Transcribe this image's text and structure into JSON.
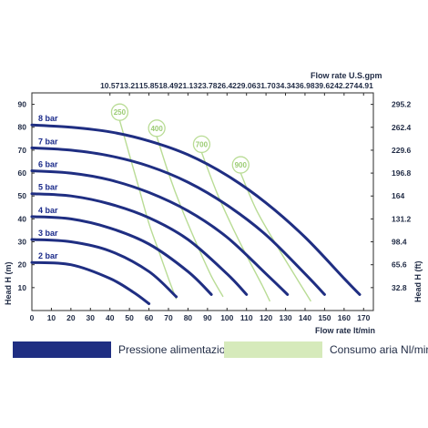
{
  "chart_data": {
    "type": "line",
    "title": "",
    "xlabel": "Flow rate  lt/min",
    "ylabel": "Head H (m)",
    "ylabel_right": "Head H (ft)",
    "xlabel_top": "Flow rate U.S.gpm",
    "xlim": [
      0,
      175
    ],
    "ylim": [
      0,
      95
    ],
    "x_ticks": [
      "0",
      "10",
      "20",
      "30",
      "40",
      "50",
      "60",
      "70",
      "80",
      "90",
      "100",
      "110",
      "120",
      "130",
      "140",
      "150",
      "160",
      "170"
    ],
    "y_ticks": [
      "10",
      "20",
      "30",
      "40",
      "50",
      "60",
      "70",
      "80",
      "90"
    ],
    "top_ticks": [
      "10.57",
      "13.21",
      "15.85",
      "18.49",
      "21.13",
      "23.78",
      "26.42",
      "29.06",
      "31.70",
      "34.34",
      "36.98",
      "39.62",
      "42.27",
      "44.91"
    ],
    "right_ticks": [
      "32.8",
      "65.6",
      "98.4",
      "131.2",
      "164",
      "196.8",
      "229.6",
      "262.4",
      "295.2"
    ],
    "grid": false,
    "pressure_series": [
      {
        "name": "8 bar",
        "x": [
          0,
          20,
          40,
          60,
          80,
          100,
          120,
          140,
          160,
          168
        ],
        "y": [
          81,
          80,
          78,
          74,
          68,
          59,
          47,
          32,
          14,
          7
        ]
      },
      {
        "name": "7 bar",
        "x": [
          0,
          20,
          40,
          60,
          80,
          100,
          120,
          140,
          150
        ],
        "y": [
          71,
          70,
          67.5,
          63,
          56,
          46,
          33,
          16,
          7
        ]
      },
      {
        "name": "6 bar",
        "x": [
          0,
          20,
          40,
          60,
          80,
          100,
          120,
          131
        ],
        "y": [
          61,
          60,
          57,
          51.5,
          43.5,
          32,
          16,
          7
        ]
      },
      {
        "name": "5 bar",
        "x": [
          0,
          20,
          40,
          60,
          80,
          100,
          110
        ],
        "y": [
          51,
          50,
          46.5,
          40.5,
          31,
          16,
          7
        ]
      },
      {
        "name": "4 bar",
        "x": [
          0,
          20,
          40,
          60,
          80,
          92
        ],
        "y": [
          41,
          40,
          36,
          29,
          17,
          7
        ]
      },
      {
        "name": "3 bar",
        "x": [
          0,
          20,
          40,
          60,
          74
        ],
        "y": [
          31,
          30,
          26,
          17,
          6
        ]
      },
      {
        "name": "2 bar",
        "x": [
          0,
          20,
          40,
          52,
          60
        ],
        "y": [
          21,
          20,
          14,
          8,
          3
        ]
      }
    ],
    "air_series": [
      {
        "name": "250",
        "x": [
          45,
          50,
          55,
          60,
          65,
          70,
          74
        ],
        "y": [
          83,
          68,
          53,
          38,
          26,
          14,
          5
        ]
      },
      {
        "name": "400",
        "x": [
          64,
          70,
          77,
          85,
          92,
          98
        ],
        "y": [
          76,
          60,
          44,
          28,
          15,
          6
        ]
      },
      {
        "name": "700",
        "x": [
          87,
          95,
          103,
          110,
          118,
          122
        ],
        "y": [
          69,
          51,
          36,
          24,
          11,
          4
        ]
      },
      {
        "name": "900",
        "x": [
          107,
          115,
          125,
          135,
          143
        ],
        "y": [
          60,
          44,
          29,
          15,
          4
        ]
      }
    ],
    "colors": {
      "pressure": "#1f2e82",
      "air": "#b9dc95",
      "text": "#1f2a44"
    },
    "legend_placement": "bottom"
  },
  "legend": {
    "pressure_label": "Pressione alimentazione aria",
    "air_label": "Consumo aria Nl/min"
  }
}
